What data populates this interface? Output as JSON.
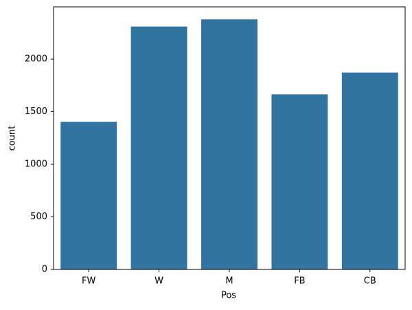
{
  "chart_data": {
    "type": "bar",
    "x_label": "Pos",
    "y_label": "count",
    "categories": [
      "FW",
      "W",
      "M",
      "FB",
      "CB"
    ],
    "values": [
      1404,
      2310,
      2378,
      1665,
      1872
    ],
    "color": "#3274a1",
    "ylim": [
      0,
      2497
    ],
    "yticks": [
      0,
      500,
      1000,
      1500,
      2000
    ],
    "grid": false
  }
}
